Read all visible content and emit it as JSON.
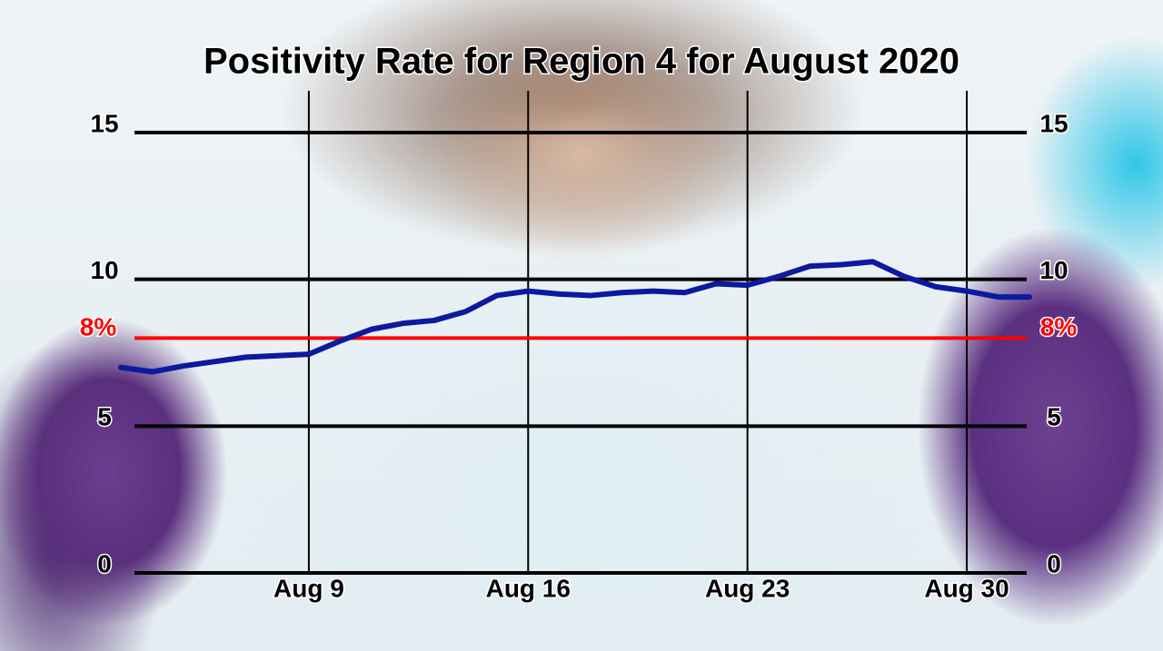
{
  "chart_data": {
    "type": "line",
    "title": "Positivity Rate for Region 4 for August 2020",
    "x": [
      3,
      4,
      5,
      6,
      7,
      8,
      9,
      10,
      11,
      12,
      13,
      14,
      15,
      16,
      17,
      18,
      19,
      20,
      21,
      22,
      23,
      24,
      25,
      26,
      27,
      28,
      29,
      30,
      31,
      32
    ],
    "series": [
      {
        "name": "Positivity Rate",
        "color": "#0b1a9e",
        "values": [
          7.0,
          6.85,
          7.05,
          7.2,
          7.35,
          7.4,
          7.45,
          7.9,
          8.3,
          8.5,
          8.6,
          8.9,
          9.45,
          9.6,
          9.5,
          9.45,
          9.55,
          9.6,
          9.55,
          9.85,
          9.8,
          10.1,
          10.45,
          10.5,
          10.6,
          10.1,
          9.75,
          9.6,
          9.4,
          9.4
        ]
      }
    ],
    "xlim": [
      3,
      32
    ],
    "xticks": [
      {
        "value": 9,
        "label": "Aug 9"
      },
      {
        "value": 16,
        "label": "Aug 16"
      },
      {
        "value": 23,
        "label": "Aug 23"
      },
      {
        "value": 30,
        "label": "Aug 30"
      }
    ],
    "ylim": [
      0,
      15
    ],
    "yticks": [
      0,
      5,
      10,
      15
    ],
    "reference": {
      "value": 8,
      "label": "8%",
      "color": "#ff0000"
    },
    "grid": true
  }
}
